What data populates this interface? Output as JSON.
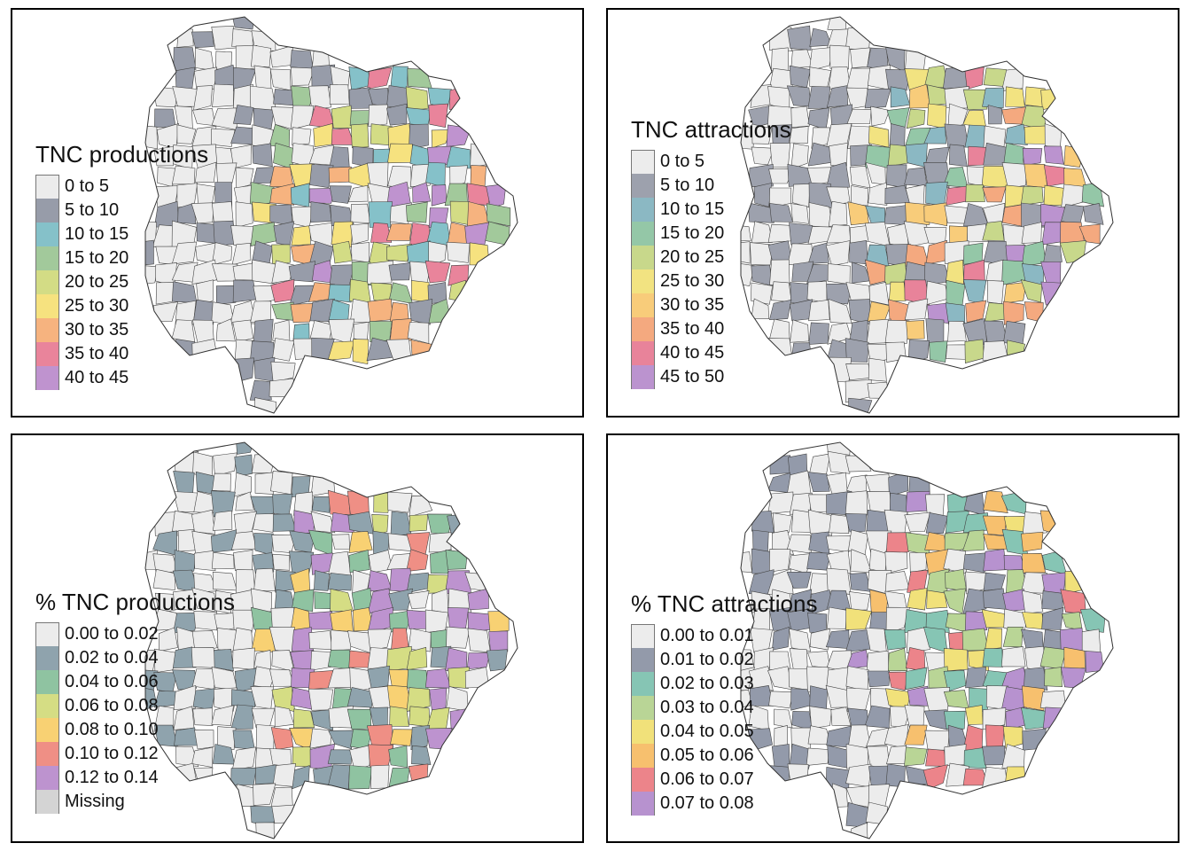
{
  "panels": [
    {
      "id": "tnc-productions",
      "legend_title": "TNC productions",
      "classes": [
        {
          "label": "0 to 5",
          "color": "#ececec"
        },
        {
          "label": "5 to 10",
          "color": "#979ca9"
        },
        {
          "label": "10 to 15",
          "color": "#85c1c9"
        },
        {
          "label": "15 to 20",
          "color": "#a2c99b"
        },
        {
          "label": "20 to 25",
          "color": "#d3dc85"
        },
        {
          "label": "25 to 30",
          "color": "#f6e27f"
        },
        {
          "label": "30 to 35",
          "color": "#f6b37f"
        },
        {
          "label": "35 to 40",
          "color": "#e9849b"
        },
        {
          "label": "40 to 45",
          "color": "#bf93cf"
        }
      ]
    },
    {
      "id": "tnc-attractions",
      "legend_title": "TNC attractions",
      "classes": [
        {
          "label": "0 to 5",
          "color": "#ececec"
        },
        {
          "label": "5 to 10",
          "color": "#9da1ad"
        },
        {
          "label": "10 to 15",
          "color": "#8bb8c3"
        },
        {
          "label": "15 to 20",
          "color": "#94c7a7"
        },
        {
          "label": "20 to 25",
          "color": "#c8d88b"
        },
        {
          "label": "25 to 30",
          "color": "#f2e381"
        },
        {
          "label": "30 to 35",
          "color": "#f8cc7a"
        },
        {
          "label": "35 to 40",
          "color": "#f4a97f"
        },
        {
          "label": "40 to 45",
          "color": "#e8839a"
        },
        {
          "label": "45 to 50",
          "color": "#bb93cf"
        }
      ]
    },
    {
      "id": "pct-tnc-productions",
      "legend_title": "% TNC productions",
      "classes": [
        {
          "label": "0.00 to 0.02",
          "color": "#ececec"
        },
        {
          "label": "0.02 to 0.04",
          "color": "#8fa3ad"
        },
        {
          "label": "0.04 to 0.06",
          "color": "#8fc3a1"
        },
        {
          "label": "0.06 to 0.08",
          "color": "#d5dd84"
        },
        {
          "label": "0.08 to 0.10",
          "color": "#f8d173"
        },
        {
          "label": "0.10 to 0.12",
          "color": "#ef8f85"
        },
        {
          "label": "0.12 to 0.14",
          "color": "#bd93cf"
        },
        {
          "label": "Missing",
          "color": "#d4d4d4"
        }
      ]
    },
    {
      "id": "pct-tnc-attractions",
      "legend_title": "% TNC attractions",
      "classes": [
        {
          "label": "0.00 to 0.01",
          "color": "#ececec"
        },
        {
          "label": "0.01 to 0.02",
          "color": "#939aaa"
        },
        {
          "label": "0.02 to 0.03",
          "color": "#86c5b4"
        },
        {
          "label": "0.03 to 0.04",
          "color": "#b9d596"
        },
        {
          "label": "0.04 to 0.05",
          "color": "#f1e17a"
        },
        {
          "label": "0.05 to 0.06",
          "color": "#f7c06e"
        },
        {
          "label": "0.06 to 0.07",
          "color": "#ec848a"
        },
        {
          "label": "0.07 to 0.08",
          "color": "#b792cf"
        }
      ]
    }
  ]
}
